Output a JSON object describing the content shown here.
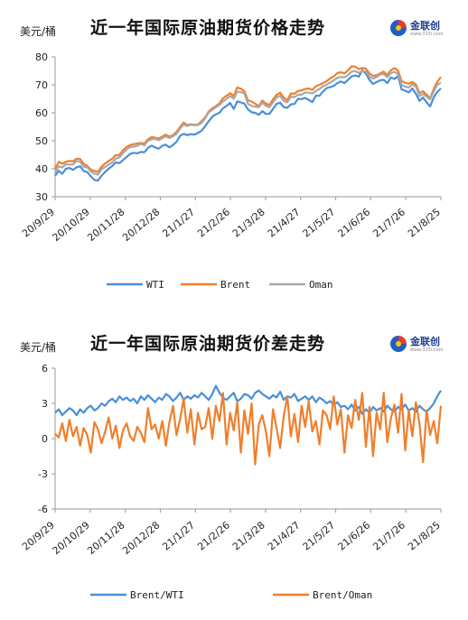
{
  "colors": {
    "blue": "#4a8fd8",
    "orange": "#ef7f2c",
    "gray": "#a8a8a8",
    "axis": "#999999"
  },
  "logo": {
    "icon": "jinlianchuang-logo-icon",
    "name": "金联创",
    "url": "www.315i.com"
  },
  "chart_data": [
    {
      "type": "line",
      "title": "近一年国际原油期货价格走势",
      "ylabel": "美元/桶",
      "xlabel": "",
      "ylim": [
        30,
        80
      ],
      "yticks": [
        30,
        40,
        50,
        60,
        70,
        80
      ],
      "x_ticks": [
        "20/9/29",
        "20/10/29",
        "20/11/28",
        "20/12/28",
        "21/1/27",
        "21/2/26",
        "21/3/28",
        "21/4/27",
        "21/5/27",
        "21/6/26",
        "21/7/26",
        "21/8/25"
      ],
      "grid": false,
      "legend": "bottom",
      "series": [
        {
          "name": "WTI",
          "color": "#4a8fd8",
          "values": [
            37.5,
            39.3,
            38.2,
            40.0,
            40.3,
            39.6,
            40.5,
            40.9,
            39.2,
            38.8,
            37.3,
            36.0,
            35.8,
            37.5,
            38.9,
            40.0,
            41.0,
            42.3,
            42.0,
            43.1,
            44.2,
            45.3,
            45.7,
            45.5,
            46.0,
            45.9,
            47.5,
            48.3,
            47.6,
            47.2,
            48.2,
            48.6,
            47.6,
            48.5,
            49.6,
            51.8,
            52.5,
            52.0,
            52.4,
            52.2,
            52.8,
            53.6,
            55.2,
            57.0,
            58.6,
            59.5,
            60.0,
            61.6,
            62.5,
            63.5,
            61.4,
            64.1,
            63.7,
            63.3,
            61.2,
            60.2,
            60.0,
            59.3,
            60.6,
            59.6,
            59.6,
            61.4,
            63.2,
            63.6,
            62.0,
            61.8,
            63.0,
            63.2,
            65.0,
            64.9,
            65.3,
            64.6,
            63.8,
            66.1,
            66.1,
            67.6,
            68.8,
            69.2,
            69.6,
            70.6,
            71.2,
            70.6,
            71.8,
            73.0,
            73.4,
            72.9,
            75.2,
            74.0,
            71.8,
            70.3,
            71.0,
            71.6,
            71.8,
            70.6,
            72.6,
            72.1,
            73.1,
            68.4,
            67.9,
            67.3,
            68.7,
            66.8,
            64.3,
            65.5,
            63.7,
            62.3,
            65.5,
            67.5,
            68.7
          ]
        },
        {
          "name": "Brent",
          "color": "#ef7f2c",
          "values": [
            40.0,
            42.5,
            41.8,
            42.5,
            42.8,
            42.6,
            43.6,
            43.5,
            41.8,
            41.0,
            39.7,
            39.2,
            38.9,
            40.7,
            41.9,
            42.8,
            43.6,
            44.9,
            44.9,
            46.6,
            47.8,
            48.5,
            48.8,
            49.0,
            49.2,
            49.0,
            50.5,
            51.3,
            51.1,
            50.8,
            51.5,
            52.2,
            51.5,
            52.0,
            53.2,
            55.0,
            56.5,
            55.6,
            55.9,
            55.7,
            55.8,
            57.0,
            58.4,
            60.5,
            61.6,
            62.4,
            63.4,
            65.2,
            66.1,
            67.0,
            66.0,
            69.0,
            68.6,
            67.7,
            64.5,
            64.0,
            63.3,
            62.3,
            64.4,
            63.3,
            62.8,
            64.8,
            66.4,
            67.2,
            65.4,
            64.4,
            66.9,
            66.8,
            67.8,
            68.0,
            68.5,
            68.7,
            68.2,
            69.5,
            70.0,
            70.6,
            71.3,
            72.3,
            73.0,
            74.2,
            74.5,
            74.1,
            75.2,
            76.6,
            76.5,
            75.6,
            76.0,
            75.8,
            74.0,
            73.2,
            73.4,
            74.1,
            74.7,
            73.5,
            75.2,
            76.0,
            75.0,
            71.3,
            70.7,
            70.4,
            71.0,
            70.2,
            67.0,
            67.7,
            66.5,
            65.2,
            68.5,
            71.1,
            72.7
          ]
        },
        {
          "name": "Oman",
          "color": "#a8a8a8",
          "values": [
            38.8,
            40.8,
            40.5,
            41.6,
            41.5,
            41.5,
            42.8,
            42.5,
            40.7,
            40.5,
            39.0,
            38.2,
            37.9,
            39.8,
            40.6,
            41.5,
            42.3,
            43.6,
            44.1,
            45.6,
            46.8,
            47.8,
            47.9,
            48.2,
            48.9,
            48.4,
            50.0,
            50.5,
            50.7,
            50.2,
            50.9,
            51.6,
            51.0,
            51.6,
            52.5,
            54.4,
            55.8,
            55.3,
            55.7,
            55.6,
            55.6,
            56.4,
            58.0,
            60.1,
            61.1,
            62.0,
            62.8,
            64.1,
            65.0,
            66.0,
            65.0,
            67.6,
            67.4,
            66.9,
            63.2,
            62.5,
            62.2,
            62.0,
            63.6,
            62.5,
            62.0,
            63.7,
            65.5,
            66.1,
            64.3,
            63.7,
            65.8,
            65.6,
            66.5,
            66.5,
            67.3,
            67.2,
            66.9,
            67.8,
            68.5,
            69.5,
            70.0,
            70.8,
            71.6,
            72.5,
            72.8,
            72.7,
            73.5,
            74.7,
            74.9,
            74.3,
            74.8,
            74.8,
            72.9,
            72.2,
            72.8,
            73.7,
            73.9,
            72.7,
            74.2,
            74.6,
            73.8,
            69.9,
            69.4,
            69.0,
            70.2,
            69.4,
            66.0,
            66.7,
            65.8,
            64.8,
            67.6,
            70.0,
            70.8
          ]
        }
      ]
    },
    {
      "type": "line",
      "title": "近一年国际原油期货价差走势",
      "ylabel": "美元/桶",
      "xlabel": "",
      "ylim": [
        -6,
        6
      ],
      "yticks": [
        -6,
        -3,
        0,
        3,
        6
      ],
      "x_ticks": [
        "20/9/29",
        "20/10/29",
        "20/11/28",
        "20/12/28",
        "21/1/27",
        "21/2/26",
        "21/3/28",
        "21/4/27",
        "21/5/27",
        "21/6/26",
        "21/7/26",
        "21/8/25"
      ],
      "grid": false,
      "legend": "bottom",
      "series": [
        {
          "name": "Brent/WTI",
          "color": "#4a8fd8",
          "values": [
            2.2,
            2.5,
            2.0,
            2.3,
            2.6,
            2.4,
            2.0,
            2.5,
            2.2,
            2.6,
            2.8,
            2.4,
            2.6,
            3.0,
            2.8,
            3.2,
            3.4,
            3.1,
            3.6,
            3.3,
            3.5,
            3.2,
            3.4,
            3.0,
            3.6,
            3.3,
            3.7,
            3.4,
            3.1,
            3.5,
            3.3,
            3.8,
            3.6,
            3.2,
            3.5,
            3.9,
            3.3,
            3.6,
            3.4,
            3.7,
            3.5,
            3.9,
            3.6,
            3.3,
            3.8,
            4.5,
            3.9,
            3.5,
            3.3,
            3.6,
            3.9,
            3.2,
            3.4,
            3.8,
            3.7,
            3.4,
            3.9,
            4.1,
            3.8,
            3.6,
            3.4,
            3.7,
            3.5,
            4.0,
            3.3,
            3.6,
            3.5,
            3.8,
            3.2,
            3.4,
            3.6,
            3.3,
            3.6,
            3.1,
            3.5,
            3.3,
            3.0,
            3.2,
            2.9,
            3.1,
            2.7,
            2.8,
            2.5,
            2.9,
            2.4,
            2.7,
            2.1,
            2.5,
            2.2,
            2.7,
            2.4,
            2.6,
            2.3,
            2.8,
            2.5,
            2.3,
            2.7,
            2.5,
            2.9,
            2.4,
            2.6,
            2.3,
            2.8,
            2.5,
            2.3,
            2.6,
            3.0,
            3.6,
            4.1
          ]
        },
        {
          "name": "Brent/Oman",
          "color": "#ef7f2c",
          "values": [
            0.4,
            0.1,
            1.3,
            -0.2,
            1.6,
            0.2,
            1.0,
            -0.6,
            0.9,
            0.3,
            -1.2,
            1.4,
            0.8,
            -0.4,
            0.6,
            1.8,
            0.0,
            1.1,
            -0.8,
            0.7,
            1.3,
            0.2,
            -0.2,
            1.0,
            0.5,
            -0.3,
            2.6,
            0.8,
            1.2,
            0.0,
            1.5,
            -0.6,
            1.4,
            2.8,
            0.3,
            1.7,
            3.4,
            0.5,
            2.5,
            -0.5,
            2.2,
            0.8,
            1.0,
            2.6,
            0.0,
            2.8,
            1.5,
            3.9,
            -0.5,
            2.2,
            0.7,
            3.1,
            -1.2,
            2.4,
            0.4,
            3.0,
            -2.2,
            1.2,
            2.0,
            0.6,
            -1.5,
            2.5,
            0.9,
            -0.8,
            1.9,
            3.6,
            0.2,
            2.1,
            -0.3,
            2.8,
            1.0,
            3.2,
            0.6,
            1.5,
            -0.5,
            2.4,
            2.0,
            0.8,
            3.6,
            1.2,
            2.5,
            -1.2,
            2.0,
            0.9,
            3.3,
            1.6,
            3.9,
            -0.7,
            2.7,
            -1.5,
            2.2,
            0.8,
            3.9,
            -0.3,
            1.7,
            2.9,
            0.5,
            3.8,
            -1.0,
            2.4,
            0.2,
            3.1,
            1.3,
            -2.0,
            2.4,
            0.3,
            1.5,
            -0.4,
            2.8
          ]
        }
      ]
    }
  ]
}
